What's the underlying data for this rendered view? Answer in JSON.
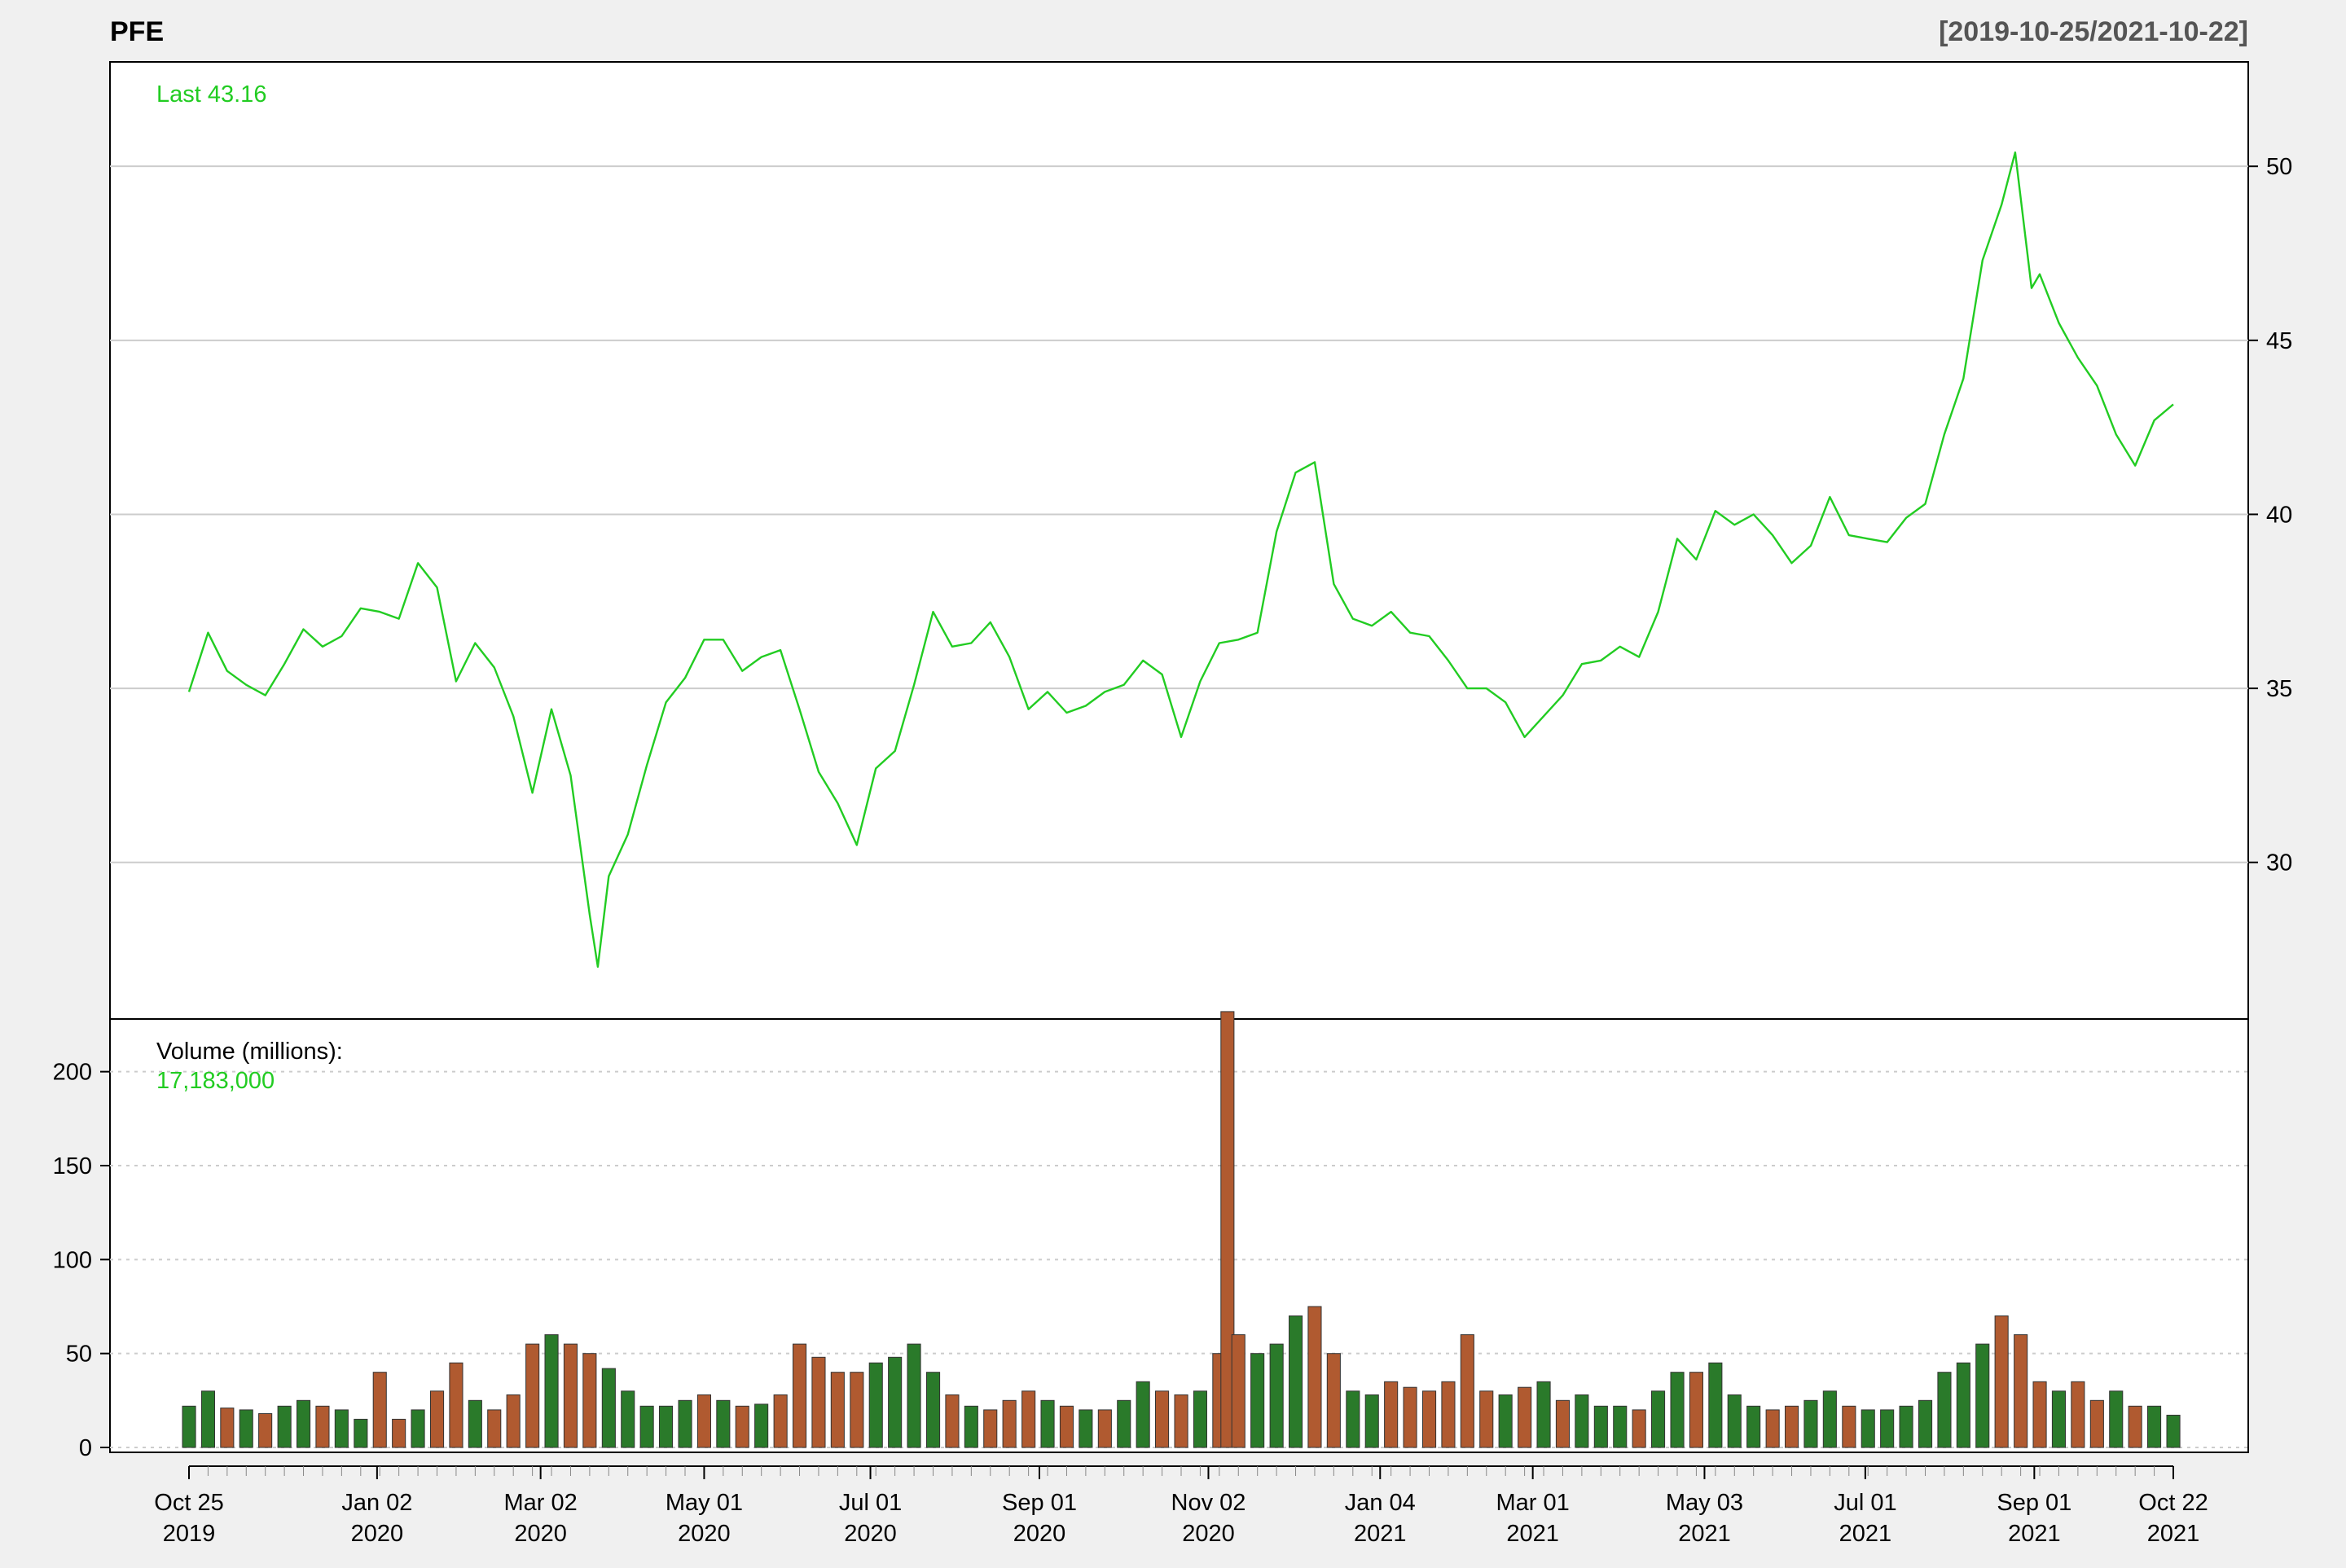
{
  "chart_data": {
    "type": "line",
    "title": "PFE",
    "subtitle": "[2019-10-25/2021-10-22]",
    "price_panel": {
      "series_name": "PFE",
      "last_label": "Last 43.16",
      "line_color": "#22cc22",
      "y_ticks": [
        30,
        35,
        40,
        45,
        50
      ],
      "ylim": [
        25.5,
        53
      ],
      "y_axis_side": "right",
      "grid": true,
      "points": [
        [
          "2019-10-25",
          34.9
        ],
        [
          "2019-11-01",
          36.6
        ],
        [
          "2019-11-08",
          35.5
        ],
        [
          "2019-11-15",
          35.1
        ],
        [
          "2019-11-22",
          34.8
        ],
        [
          "2019-11-29",
          35.7
        ],
        [
          "2019-12-06",
          36.7
        ],
        [
          "2019-12-13",
          36.2
        ],
        [
          "2019-12-20",
          36.5
        ],
        [
          "2019-12-27",
          37.3
        ],
        [
          "2020-01-03",
          37.2
        ],
        [
          "2020-01-10",
          37.0
        ],
        [
          "2020-01-17",
          38.6
        ],
        [
          "2020-01-24",
          37.9
        ],
        [
          "2020-01-31",
          35.2
        ],
        [
          "2020-02-07",
          36.3
        ],
        [
          "2020-02-14",
          35.6
        ],
        [
          "2020-02-21",
          34.2
        ],
        [
          "2020-02-28",
          32.0
        ],
        [
          "2020-03-06",
          34.4
        ],
        [
          "2020-03-13",
          32.5
        ],
        [
          "2020-03-20",
          28.5
        ],
        [
          "2020-03-23",
          27.0
        ],
        [
          "2020-03-27",
          29.6
        ],
        [
          "2020-04-03",
          30.8
        ],
        [
          "2020-04-10",
          32.8
        ],
        [
          "2020-04-17",
          34.6
        ],
        [
          "2020-04-24",
          35.3
        ],
        [
          "2020-05-01",
          36.4
        ],
        [
          "2020-05-08",
          36.4
        ],
        [
          "2020-05-15",
          35.5
        ],
        [
          "2020-05-22",
          35.9
        ],
        [
          "2020-05-29",
          36.1
        ],
        [
          "2020-06-05",
          34.4
        ],
        [
          "2020-06-12",
          32.6
        ],
        [
          "2020-06-19",
          31.7
        ],
        [
          "2020-06-26",
          30.5
        ],
        [
          "2020-07-03",
          32.7
        ],
        [
          "2020-07-10",
          33.2
        ],
        [
          "2020-07-17",
          35.1
        ],
        [
          "2020-07-24",
          37.2
        ],
        [
          "2020-07-31",
          36.2
        ],
        [
          "2020-08-07",
          36.3
        ],
        [
          "2020-08-14",
          36.9
        ],
        [
          "2020-08-21",
          35.9
        ],
        [
          "2020-08-28",
          34.4
        ],
        [
          "2020-09-04",
          34.9
        ],
        [
          "2020-09-11",
          34.3
        ],
        [
          "2020-09-18",
          34.5
        ],
        [
          "2020-09-25",
          34.9
        ],
        [
          "2020-10-02",
          35.1
        ],
        [
          "2020-10-09",
          35.8
        ],
        [
          "2020-10-16",
          35.4
        ],
        [
          "2020-10-23",
          33.6
        ],
        [
          "2020-10-30",
          35.2
        ],
        [
          "2020-11-06",
          36.3
        ],
        [
          "2020-11-13",
          36.4
        ],
        [
          "2020-11-20",
          36.6
        ],
        [
          "2020-11-27",
          39.5
        ],
        [
          "2020-12-04",
          41.2
        ],
        [
          "2020-12-11",
          41.5
        ],
        [
          "2020-12-18",
          38.0
        ],
        [
          "2020-12-25",
          37.0
        ],
        [
          "2021-01-01",
          36.8
        ],
        [
          "2021-01-08",
          37.2
        ],
        [
          "2021-01-15",
          36.6
        ],
        [
          "2021-01-22",
          36.5
        ],
        [
          "2021-01-29",
          35.8
        ],
        [
          "2021-02-05",
          35.0
        ],
        [
          "2021-02-12",
          35.0
        ],
        [
          "2021-02-19",
          34.6
        ],
        [
          "2021-02-26",
          33.6
        ],
        [
          "2021-03-05",
          34.2
        ],
        [
          "2021-03-12",
          34.8
        ],
        [
          "2021-03-19",
          35.7
        ],
        [
          "2021-03-26",
          35.8
        ],
        [
          "2021-04-02",
          36.2
        ],
        [
          "2021-04-09",
          35.9
        ],
        [
          "2021-04-16",
          37.2
        ],
        [
          "2021-04-23",
          39.3
        ],
        [
          "2021-04-30",
          38.7
        ],
        [
          "2021-05-07",
          40.1
        ],
        [
          "2021-05-14",
          39.7
        ],
        [
          "2021-05-21",
          40.0
        ],
        [
          "2021-05-28",
          39.4
        ],
        [
          "2021-06-04",
          38.6
        ],
        [
          "2021-06-11",
          39.1
        ],
        [
          "2021-06-18",
          40.5
        ],
        [
          "2021-06-25",
          39.4
        ],
        [
          "2021-07-02",
          39.3
        ],
        [
          "2021-07-09",
          39.2
        ],
        [
          "2021-07-16",
          39.9
        ],
        [
          "2021-07-23",
          40.3
        ],
        [
          "2021-07-30",
          42.3
        ],
        [
          "2021-08-06",
          43.9
        ],
        [
          "2021-08-13",
          47.3
        ],
        [
          "2021-08-20",
          48.9
        ],
        [
          "2021-08-25",
          50.4
        ],
        [
          "2021-08-31",
          46.5
        ],
        [
          "2021-09-03",
          46.9
        ],
        [
          "2021-09-10",
          45.5
        ],
        [
          "2021-09-17",
          44.5
        ],
        [
          "2021-09-24",
          43.7
        ],
        [
          "2021-10-01",
          42.3
        ],
        [
          "2021-10-08",
          41.4
        ],
        [
          "2021-10-15",
          42.7
        ],
        [
          "2021-10-22",
          43.16
        ]
      ]
    },
    "volume_panel": {
      "label": "Volume (millions):",
      "last_value": "17,183,000",
      "y_ticks": [
        0,
        50,
        100,
        150,
        200
      ],
      "ylim": [
        0,
        225
      ],
      "y_axis_side": "left",
      "up_color": "#2a7a2a",
      "down_color": "#b05a30",
      "bars": [
        [
          "2019-10-25",
          22,
          "up"
        ],
        [
          "2019-11-01",
          30,
          "up"
        ],
        [
          "2019-11-08",
          21,
          "down"
        ],
        [
          "2019-11-15",
          20,
          "up"
        ],
        [
          "2019-11-22",
          18,
          "down"
        ],
        [
          "2019-11-29",
          22,
          "up"
        ],
        [
          "2019-12-06",
          25,
          "up"
        ],
        [
          "2019-12-13",
          22,
          "down"
        ],
        [
          "2019-12-20",
          20,
          "up"
        ],
        [
          "2019-12-27",
          15,
          "up"
        ],
        [
          "2020-01-03",
          40,
          "down"
        ],
        [
          "2020-01-10",
          15,
          "down"
        ],
        [
          "2020-01-17",
          20,
          "up"
        ],
        [
          "2020-01-24",
          30,
          "down"
        ],
        [
          "2020-01-31",
          45,
          "down"
        ],
        [
          "2020-02-07",
          25,
          "up"
        ],
        [
          "2020-02-14",
          20,
          "down"
        ],
        [
          "2020-02-21",
          28,
          "down"
        ],
        [
          "2020-02-28",
          55,
          "down"
        ],
        [
          "2020-03-06",
          60,
          "up"
        ],
        [
          "2020-03-13",
          55,
          "down"
        ],
        [
          "2020-03-20",
          50,
          "down"
        ],
        [
          "2020-03-27",
          42,
          "up"
        ],
        [
          "2020-04-03",
          30,
          "up"
        ],
        [
          "2020-04-10",
          22,
          "up"
        ],
        [
          "2020-04-17",
          22,
          "up"
        ],
        [
          "2020-04-24",
          25,
          "up"
        ],
        [
          "2020-05-01",
          28,
          "down"
        ],
        [
          "2020-05-08",
          25,
          "up"
        ],
        [
          "2020-05-15",
          22,
          "down"
        ],
        [
          "2020-05-22",
          23,
          "up"
        ],
        [
          "2020-05-29",
          28,
          "down"
        ],
        [
          "2020-06-05",
          55,
          "down"
        ],
        [
          "2020-06-12",
          48,
          "down"
        ],
        [
          "2020-06-19",
          40,
          "down"
        ],
        [
          "2020-06-26",
          40,
          "down"
        ],
        [
          "2020-07-03",
          45,
          "up"
        ],
        [
          "2020-07-10",
          48,
          "up"
        ],
        [
          "2020-07-17",
          55,
          "up"
        ],
        [
          "2020-07-24",
          40,
          "up"
        ],
        [
          "2020-07-31",
          28,
          "down"
        ],
        [
          "2020-08-07",
          22,
          "up"
        ],
        [
          "2020-08-14",
          20,
          "down"
        ],
        [
          "2020-08-21",
          25,
          "down"
        ],
        [
          "2020-08-28",
          30,
          "down"
        ],
        [
          "2020-09-04",
          25,
          "up"
        ],
        [
          "2020-09-11",
          22,
          "down"
        ],
        [
          "2020-09-18",
          20,
          "up"
        ],
        [
          "2020-09-25",
          20,
          "down"
        ],
        [
          "2020-10-02",
          25,
          "up"
        ],
        [
          "2020-10-09",
          35,
          "up"
        ],
        [
          "2020-10-16",
          30,
          "down"
        ],
        [
          "2020-10-23",
          28,
          "down"
        ],
        [
          "2020-10-30",
          30,
          "up"
        ],
        [
          "2020-11-06",
          50,
          "down"
        ],
        [
          "2020-11-09",
          232,
          "down"
        ],
        [
          "2020-11-13",
          60,
          "down"
        ],
        [
          "2020-11-20",
          50,
          "up"
        ],
        [
          "2020-11-27",
          55,
          "up"
        ],
        [
          "2020-12-04",
          70,
          "up"
        ],
        [
          "2020-12-11",
          75,
          "down"
        ],
        [
          "2020-12-18",
          50,
          "down"
        ],
        [
          "2020-12-25",
          30,
          "up"
        ],
        [
          "2021-01-01",
          28,
          "up"
        ],
        [
          "2021-01-08",
          35,
          "down"
        ],
        [
          "2021-01-15",
          32,
          "down"
        ],
        [
          "2021-01-22",
          30,
          "down"
        ],
        [
          "2021-01-29",
          35,
          "down"
        ],
        [
          "2021-02-05",
          60,
          "down"
        ],
        [
          "2021-02-12",
          30,
          "down"
        ],
        [
          "2021-02-19",
          28,
          "up"
        ],
        [
          "2021-02-26",
          32,
          "down"
        ],
        [
          "2021-03-05",
          35,
          "up"
        ],
        [
          "2021-03-12",
          25,
          "down"
        ],
        [
          "2021-03-19",
          28,
          "up"
        ],
        [
          "2021-03-26",
          22,
          "up"
        ],
        [
          "2021-04-02",
          22,
          "up"
        ],
        [
          "2021-04-09",
          20,
          "down"
        ],
        [
          "2021-04-16",
          30,
          "up"
        ],
        [
          "2021-04-23",
          40,
          "up"
        ],
        [
          "2021-04-30",
          40,
          "down"
        ],
        [
          "2021-05-07",
          45,
          "up"
        ],
        [
          "2021-05-14",
          28,
          "up"
        ],
        [
          "2021-05-21",
          22,
          "up"
        ],
        [
          "2021-05-28",
          20,
          "down"
        ],
        [
          "2021-06-04",
          22,
          "down"
        ],
        [
          "2021-06-11",
          25,
          "up"
        ],
        [
          "2021-06-18",
          30,
          "up"
        ],
        [
          "2021-06-25",
          22,
          "down"
        ],
        [
          "2021-07-02",
          20,
          "up"
        ],
        [
          "2021-07-09",
          20,
          "up"
        ],
        [
          "2021-07-16",
          22,
          "up"
        ],
        [
          "2021-07-23",
          25,
          "up"
        ],
        [
          "2021-07-30",
          40,
          "up"
        ],
        [
          "2021-08-06",
          45,
          "up"
        ],
        [
          "2021-08-13",
          55,
          "up"
        ],
        [
          "2021-08-20",
          70,
          "down"
        ],
        [
          "2021-08-27",
          60,
          "down"
        ],
        [
          "2021-09-03",
          35,
          "down"
        ],
        [
          "2021-09-10",
          30,
          "up"
        ],
        [
          "2021-09-17",
          35,
          "down"
        ],
        [
          "2021-09-24",
          25,
          "down"
        ],
        [
          "2021-10-01",
          30,
          "up"
        ],
        [
          "2021-10-08",
          22,
          "down"
        ],
        [
          "2021-10-15",
          22,
          "up"
        ],
        [
          "2021-10-22",
          17.18,
          "up"
        ]
      ]
    },
    "x_axis": {
      "start": "2019-10-25",
      "end": "2021-10-22",
      "ticks": [
        {
          "date": "2019-10-25",
          "line1": "Oct 25",
          "line2": "2019"
        },
        {
          "date": "2020-01-02",
          "line1": "Jan 02",
          "line2": "2020"
        },
        {
          "date": "2020-03-02",
          "line1": "Mar 02",
          "line2": "2020"
        },
        {
          "date": "2020-05-01",
          "line1": "May 01",
          "line2": "2020"
        },
        {
          "date": "2020-07-01",
          "line1": "Jul 01",
          "line2": "2020"
        },
        {
          "date": "2020-09-01",
          "line1": "Sep 01",
          "line2": "2020"
        },
        {
          "date": "2020-11-02",
          "line1": "Nov 02",
          "line2": "2020"
        },
        {
          "date": "2021-01-04",
          "line1": "Jan 04",
          "line2": "2021"
        },
        {
          "date": "2021-03-01",
          "line1": "Mar 01",
          "line2": "2021"
        },
        {
          "date": "2021-05-03",
          "line1": "May 03",
          "line2": "2021"
        },
        {
          "date": "2021-07-01",
          "line1": "Jul 01",
          "line2": "2021"
        },
        {
          "date": "2021-09-01",
          "line1": "Sep 01",
          "line2": "2021"
        },
        {
          "date": "2021-10-22",
          "line1": "Oct 22",
          "line2": "2021"
        }
      ]
    }
  }
}
